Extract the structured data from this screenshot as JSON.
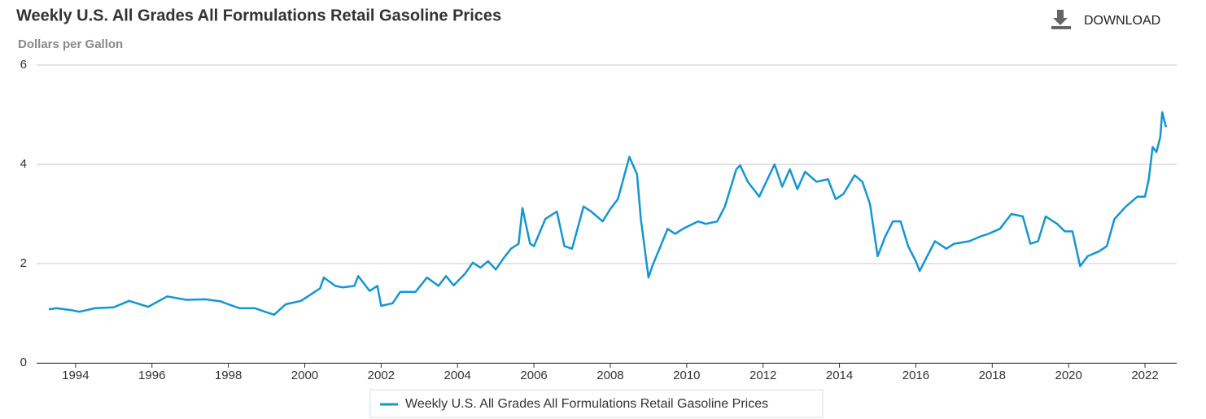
{
  "chart_data": {
    "type": "line",
    "title": "Weekly U.S. All Grades All Formulations Retail Gasoline Prices",
    "subtitle": "Dollars per Gallon",
    "download": "DOWNLOAD",
    "x": [
      1993.3,
      1993.5,
      1993.9,
      1994.1,
      1994.5,
      1995.0,
      1995.4,
      1995.9,
      1996.4,
      1996.9,
      1997.4,
      1997.8,
      1998.0,
      1998.3,
      1998.7,
      1999.0,
      1999.2,
      1999.5,
      1999.9,
      2000.2,
      2000.4,
      2000.5,
      2000.8,
      2001.0,
      2001.3,
      2001.4,
      2001.7,
      2001.9,
      2002.0,
      2002.3,
      2002.5,
      2002.9,
      2003.2,
      2003.5,
      2003.7,
      2003.9,
      2004.2,
      2004.4,
      2004.6,
      2004.8,
      2005.0,
      2005.2,
      2005.4,
      2005.6,
      2005.7,
      2005.9,
      2006.0,
      2006.3,
      2006.6,
      2006.8,
      2007.0,
      2007.3,
      2007.5,
      2007.8,
      2008.0,
      2008.2,
      2008.5,
      2008.7,
      2008.8,
      2009.0,
      2009.1,
      2009.5,
      2009.7,
      2009.9,
      2010.3,
      2010.5,
      2010.8,
      2011.0,
      2011.3,
      2011.4,
      2011.6,
      2011.8,
      2011.9,
      2012.3,
      2012.5,
      2012.7,
      2012.9,
      2013.1,
      2013.4,
      2013.7,
      2013.9,
      2014.1,
      2014.4,
      2014.6,
      2014.8,
      2015.0,
      2015.2,
      2015.4,
      2015.6,
      2015.8,
      2016.0,
      2016.1,
      2016.5,
      2016.8,
      2017.0,
      2017.4,
      2017.7,
      2017.9,
      2018.2,
      2018.5,
      2018.8,
      2019.0,
      2019.2,
      2019.4,
      2019.7,
      2019.9,
      2020.1,
      2020.3,
      2020.5,
      2020.8,
      2021.0,
      2021.2,
      2021.5,
      2021.8,
      2022.0,
      2022.1,
      2022.2,
      2022.3,
      2022.4,
      2022.45,
      2022.55
    ],
    "series": [
      {
        "name": "Weekly U.S. All Grades All Formulations Retail Gasoline Prices",
        "color": "#1496d3",
        "values": [
          1.08,
          1.1,
          1.06,
          1.03,
          1.1,
          1.12,
          1.25,
          1.13,
          1.34,
          1.27,
          1.28,
          1.24,
          1.18,
          1.1,
          1.1,
          1.02,
          0.97,
          1.18,
          1.25,
          1.4,
          1.5,
          1.72,
          1.55,
          1.52,
          1.55,
          1.75,
          1.45,
          1.55,
          1.15,
          1.2,
          1.43,
          1.43,
          1.72,
          1.55,
          1.75,
          1.56,
          1.8,
          2.02,
          1.92,
          2.05,
          1.88,
          2.1,
          2.3,
          2.4,
          3.12,
          2.4,
          2.35,
          2.9,
          3.05,
          2.35,
          2.3,
          3.15,
          3.05,
          2.85,
          3.1,
          3.3,
          4.15,
          3.8,
          2.9,
          1.72,
          1.95,
          2.7,
          2.6,
          2.7,
          2.85,
          2.8,
          2.85,
          3.15,
          3.9,
          3.98,
          3.65,
          3.45,
          3.35,
          4.0,
          3.55,
          3.9,
          3.5,
          3.85,
          3.65,
          3.7,
          3.3,
          3.4,
          3.78,
          3.65,
          3.2,
          2.15,
          2.55,
          2.85,
          2.85,
          2.35,
          2.05,
          1.85,
          2.45,
          2.3,
          2.4,
          2.45,
          2.55,
          2.6,
          2.7,
          3.0,
          2.95,
          2.4,
          2.45,
          2.95,
          2.8,
          2.65,
          2.65,
          1.95,
          2.15,
          2.25,
          2.35,
          2.9,
          3.15,
          3.35,
          3.35,
          3.7,
          4.35,
          4.25,
          4.55,
          5.05,
          4.75
        ]
      }
    ],
    "xlim": [
      1992.98,
      2022.83
    ],
    "xticks": [
      1994,
      1996,
      1998,
      2000,
      2002,
      2004,
      2006,
      2008,
      2010,
      2012,
      2014,
      2016,
      2018,
      2020,
      2022
    ],
    "ylim": [
      0,
      6
    ],
    "yticks": [
      0,
      2,
      4,
      6
    ],
    "grid": true,
    "legend": "bottom"
  }
}
